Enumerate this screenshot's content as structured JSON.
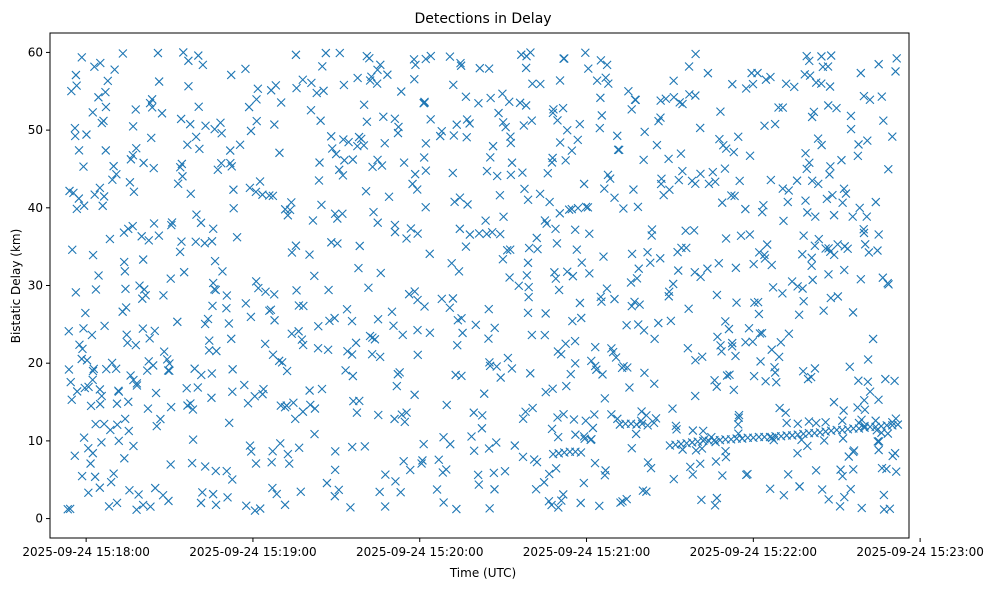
{
  "chart_data": {
    "type": "scatter",
    "title": "Detections in Delay",
    "xlabel": "Time (UTC)",
    "ylabel": "Bistatic Delay (km)",
    "marker": "x",
    "color": "#1f77b4",
    "grid": false,
    "legend": "none",
    "x_range": [
      "2025-09-24 15:17:47",
      "2025-09-24 15:22:56"
    ],
    "ylim": [
      -2.5,
      62.5
    ],
    "x_ticks": [
      "2025-09-24 15:18:00",
      "2025-09-24 15:19:00",
      "2025-09-24 15:20:00",
      "2025-09-24 15:21:00",
      "2025-09-24 15:22:00",
      "2025-09-24 15:23:00"
    ],
    "y_ticks": [
      0,
      10,
      20,
      30,
      40,
      50,
      60
    ],
    "clutter_window": [
      "2025-09-24 15:17:53",
      "2025-09-24 15:22:52"
    ],
    "clutter_count": 1050,
    "clutter_seed": 20250924,
    "track": [
      [
        "2025-09-24 15:20:48",
        8.3
      ],
      [
        "2025-09-24 15:20:50",
        8.4
      ],
      [
        "2025-09-24 15:20:52",
        8.5
      ],
      [
        "2025-09-24 15:20:54",
        8.6
      ],
      [
        "2025-09-24 15:20:56",
        8.6
      ],
      [
        "2025-09-24 15:20:58",
        8.5
      ],
      [
        "2025-09-24 15:21:30",
        9.4
      ],
      [
        "2025-09-24 15:21:32",
        9.5
      ],
      [
        "2025-09-24 15:21:34",
        9.6
      ],
      [
        "2025-09-24 15:21:36",
        9.7
      ],
      [
        "2025-09-24 15:21:38",
        9.8
      ],
      [
        "2025-09-24 15:21:40",
        9.9
      ],
      [
        "2025-09-24 15:21:42",
        10.0
      ],
      [
        "2025-09-24 15:21:44",
        10.0
      ],
      [
        "2025-09-24 15:21:46",
        10.1
      ],
      [
        "2025-09-24 15:21:48",
        10.1
      ],
      [
        "2025-09-24 15:21:50",
        10.2
      ],
      [
        "2025-09-24 15:21:52",
        10.2
      ],
      [
        "2025-09-24 15:21:54",
        10.3
      ],
      [
        "2025-09-24 15:21:56",
        10.3
      ],
      [
        "2025-09-24 15:21:58",
        10.4
      ],
      [
        "2025-09-24 15:22:00",
        10.4
      ],
      [
        "2025-09-24 15:22:02",
        10.5
      ],
      [
        "2025-09-24 15:22:04",
        10.5
      ],
      [
        "2025-09-24 15:22:06",
        10.5
      ],
      [
        "2025-09-24 15:22:08",
        10.6
      ],
      [
        "2025-09-24 15:22:10",
        10.6
      ],
      [
        "2025-09-24 15:22:12",
        10.7
      ],
      [
        "2025-09-24 15:22:14",
        10.7
      ],
      [
        "2025-09-24 15:22:16",
        10.8
      ],
      [
        "2025-09-24 15:22:18",
        10.9
      ],
      [
        "2025-09-24 15:22:20",
        11.0
      ],
      [
        "2025-09-24 15:22:22",
        11.0
      ],
      [
        "2025-09-24 15:22:24",
        11.1
      ],
      [
        "2025-09-24 15:22:26",
        11.2
      ],
      [
        "2025-09-24 15:22:28",
        11.3
      ],
      [
        "2025-09-24 15:22:30",
        11.4
      ],
      [
        "2025-09-24 15:22:32",
        11.4
      ],
      [
        "2025-09-24 15:22:34",
        11.5
      ],
      [
        "2025-09-24 15:22:36",
        11.6
      ],
      [
        "2025-09-24 15:22:38",
        11.6
      ],
      [
        "2025-09-24 15:22:40",
        11.7
      ],
      [
        "2025-09-24 15:22:42",
        11.8
      ],
      [
        "2025-09-24 15:22:44",
        11.8
      ],
      [
        "2025-09-24 15:22:46",
        11.9
      ],
      [
        "2025-09-24 15:22:48",
        12.0
      ],
      [
        "2025-09-24 15:22:50",
        12.0
      ],
      [
        "2025-09-24 15:22:52",
        12.1
      ],
      [
        "2025-09-24 15:22:12",
        12.3
      ],
      [
        "2025-09-24 15:22:16",
        12.2
      ],
      [
        "2025-09-24 15:22:20",
        12.5
      ],
      [
        "2025-09-24 15:22:26",
        12.4
      ],
      [
        "2025-09-24 15:22:32",
        12.6
      ],
      [
        "2025-09-24 15:22:38",
        12.3
      ],
      [
        "2025-09-24 15:22:44",
        12.6
      ],
      [
        "2025-09-24 15:22:50",
        12.4
      ],
      [
        "2025-09-24 15:21:12",
        12.1
      ],
      [
        "2025-09-24 15:21:14",
        12.2
      ],
      [
        "2025-09-24 15:21:16",
        12.2
      ],
      [
        "2025-09-24 15:21:18",
        12.1
      ],
      [
        "2025-09-24 15:21:20",
        12.2
      ],
      [
        "2025-09-24 15:21:22",
        12.0
      ]
    ]
  }
}
